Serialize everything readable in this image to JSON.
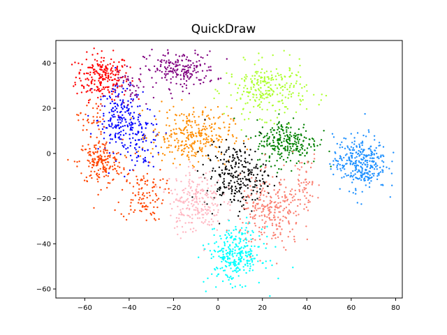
{
  "chart_data": {
    "type": "scatter",
    "title": "QuickDraw",
    "xlabel": "",
    "ylabel": "",
    "xlim": [
      -73,
      83
    ],
    "ylim": [
      -64,
      50
    ],
    "x_ticks": [
      -60,
      -40,
      -20,
      0,
      20,
      40,
      60,
      80
    ],
    "y_ticks": [
      -60,
      -40,
      -20,
      0,
      20,
      40
    ],
    "grid": false,
    "legend": "none",
    "series": [
      {
        "color": "#ff0000",
        "clusters": [
          {
            "cx": -52,
            "cy": 34,
            "sx": 6,
            "sy": 5,
            "n": 230
          }
        ]
      },
      {
        "color": "#0000ff",
        "clusters": [
          {
            "cx": -44,
            "cy": 15,
            "sx": 5,
            "sy": 7,
            "n": 200
          },
          {
            "cx": -33,
            "cy": 5,
            "sx": 4,
            "sy": 6,
            "n": 80
          }
        ]
      },
      {
        "color": "#ff4500",
        "clusters": [
          {
            "cx": -53,
            "cy": -4,
            "sx": 5,
            "sy": 5,
            "n": 180
          },
          {
            "cx": -34,
            "cy": -18,
            "sx": 5,
            "sy": 6,
            "n": 110
          },
          {
            "cx": -57,
            "cy": 15,
            "sx": 3,
            "sy": 5,
            "n": 40
          }
        ]
      },
      {
        "color": "#800080",
        "clusters": [
          {
            "cx": -17,
            "cy": 37,
            "sx": 8,
            "sy": 4,
            "n": 200
          },
          {
            "cx": -38,
            "cy": 28,
            "sx": 5,
            "sy": 4,
            "n": 40
          }
        ]
      },
      {
        "color": "#adff2f",
        "clusters": [
          {
            "cx": 22,
            "cy": 28,
            "sx": 9,
            "sy": 6,
            "n": 260
          }
        ]
      },
      {
        "color": "#ff8c00",
        "clusters": [
          {
            "cx": -12,
            "cy": 8,
            "sx": 9,
            "sy": 6,
            "n": 300
          }
        ]
      },
      {
        "color": "#008000",
        "clusters": [
          {
            "cx": 31,
            "cy": 5,
            "sx": 7,
            "sy": 5,
            "n": 250
          }
        ]
      },
      {
        "color": "#000000",
        "clusters": [
          {
            "cx": 8,
            "cy": -10,
            "sx": 7,
            "sy": 7,
            "n": 260
          }
        ]
      },
      {
        "color": "#1e90ff",
        "clusters": [
          {
            "cx": 64,
            "cy": -4,
            "sx": 6,
            "sy": 6,
            "n": 320
          }
        ]
      },
      {
        "color": "#ffb6c1",
        "clusters": [
          {
            "cx": -10,
            "cy": -21,
            "sx": 6,
            "sy": 7,
            "n": 230
          }
        ]
      },
      {
        "color": "#fa8072",
        "clusters": [
          {
            "cx": 24,
            "cy": -27,
            "sx": 7,
            "sy": 8,
            "n": 250
          },
          {
            "cx": 38,
            "cy": -12,
            "sx": 4,
            "sy": 6,
            "n": 60
          }
        ]
      },
      {
        "color": "#00ffff",
        "clusters": [
          {
            "cx": 8,
            "cy": -45,
            "sx": 6,
            "sy": 6,
            "n": 300
          }
        ]
      }
    ]
  }
}
